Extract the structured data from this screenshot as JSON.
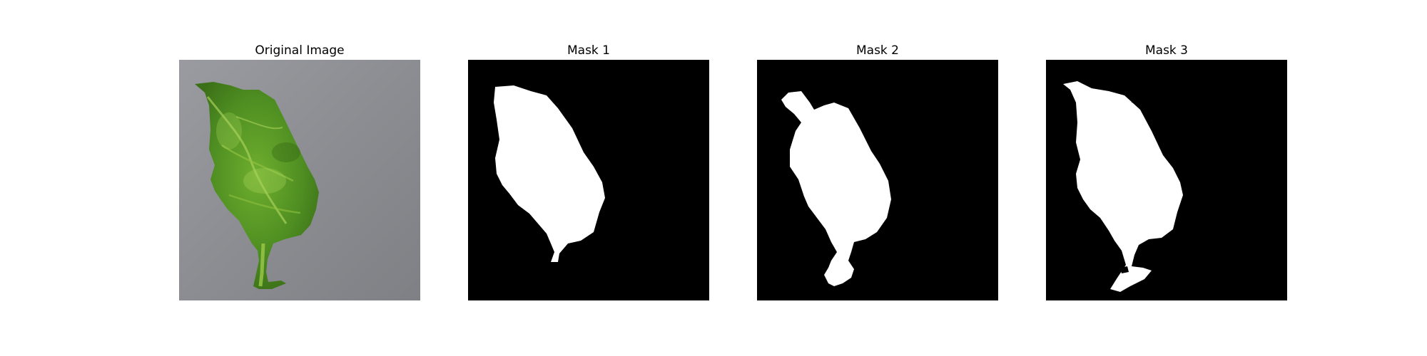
{
  "figure": {
    "panels": [
      {
        "title": "Original Image"
      },
      {
        "title": "Mask 1"
      },
      {
        "title": "Mask 2"
      },
      {
        "title": "Mask 3"
      }
    ]
  },
  "colors": {
    "background": "#ffffff",
    "mask_background": "#000000",
    "mask_foreground": "#ffffff",
    "photo_background": "#8d8e93",
    "leaf_green": "#5f9e2a",
    "leaf_dark": "#3f7a1c",
    "leaf_light": "#9cc94a"
  }
}
